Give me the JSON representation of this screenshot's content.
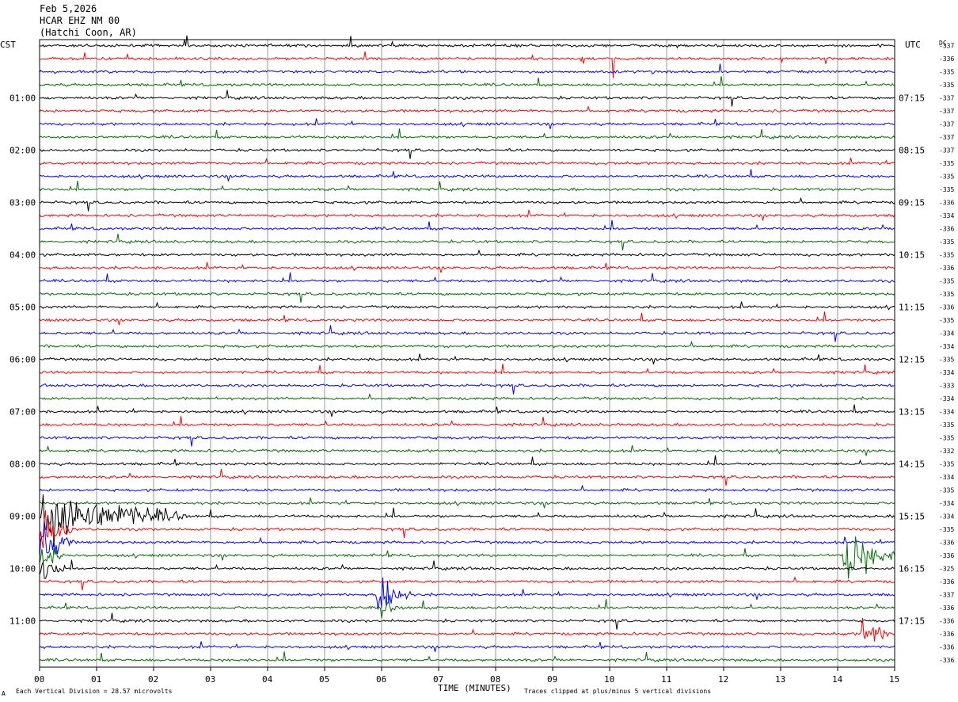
{
  "header": {
    "date": "Feb 5,2026",
    "station": "HCAR EHZ NM 00",
    "location": "(Hatchi Coon, AR)"
  },
  "left_tz": "CST",
  "right_tz": "UTC",
  "dc_header": "DC",
  "footer": {
    "scale_note": "Each Vertical Division =   28.57 microvolts",
    "clip_note": "Traces clipped at plus/minus 5 vertical divisions",
    "corner_mark": "A"
  },
  "chart_data": {
    "type": "line",
    "xlabel": "TIME (MINUTES)",
    "x_ticks": [
      "00",
      "01",
      "02",
      "03",
      "04",
      "05",
      "06",
      "07",
      "08",
      "09",
      "10",
      "11",
      "12",
      "13",
      "14",
      "15"
    ],
    "xlim": [
      0,
      15
    ],
    "rows_per_hour": 4,
    "trace_colors": [
      "#000000",
      "#ff0000",
      "#0000ff",
      "#007000"
    ],
    "left_hour_labels": [
      "",
      "01:00",
      "02:00",
      "03:00",
      "04:00",
      "05:00",
      "06:00",
      "07:00",
      "08:00",
      "09:00",
      "10:00",
      "11:00"
    ],
    "right_hour_labels": [
      "",
      "07:15",
      "08:15",
      "09:15",
      "10:15",
      "11:15",
      "12:15",
      "13:15",
      "14:15",
      "15:15",
      "16:15",
      "17:15"
    ],
    "dc_offsets": [
      "-337",
      "-336",
      "-335",
      "-335",
      "-337",
      "-337",
      "-337",
      "-337",
      "-337",
      "-335",
      "-335",
      "-335",
      "-336",
      "-334",
      "-336",
      "-335",
      "-335",
      "-336",
      "-335",
      "-335",
      "-336",
      "-335",
      "-334",
      "-334",
      "-335",
      "-334",
      "-333",
      "-334",
      "-334",
      "-335",
      "-335",
      "-332",
      "-335",
      "-334",
      "-335",
      "-334",
      "-334",
      "-335",
      "-336",
      "-336",
      "-325",
      "-336",
      "-337",
      "-336",
      "-336",
      "-336",
      "-336",
      "-336"
    ],
    "events": [
      {
        "row": 36,
        "minute": 0.0,
        "duration": 2.6,
        "amplitude": "clipped"
      },
      {
        "row": 37,
        "minute": 0.0,
        "duration": 0.6,
        "amplitude": "clipped"
      },
      {
        "row": 38,
        "minute": 0.0,
        "duration": 0.6,
        "amplitude": "clipped"
      },
      {
        "row": 39,
        "minute": 0.0,
        "duration": 0.5,
        "amplitude": "large"
      },
      {
        "row": 40,
        "minute": 0.0,
        "duration": 0.5,
        "amplitude": "large"
      },
      {
        "row": 42,
        "minute": 5.9,
        "duration": 0.6,
        "amplitude": "clipped"
      },
      {
        "row": 43,
        "minute": 6.0,
        "duration": 0.4,
        "amplitude": "medium"
      },
      {
        "row": 39,
        "minute": 14.1,
        "duration": 0.9,
        "amplitude": "clipped"
      },
      {
        "row": 45,
        "minute": 14.4,
        "duration": 0.6,
        "amplitude": "large"
      },
      {
        "row": 1,
        "minute": 9.5,
        "duration": 0.05,
        "amplitude": "clipped"
      },
      {
        "row": 1,
        "minute": 10.05,
        "duration": 0.05,
        "amplitude": "clipped"
      }
    ]
  }
}
